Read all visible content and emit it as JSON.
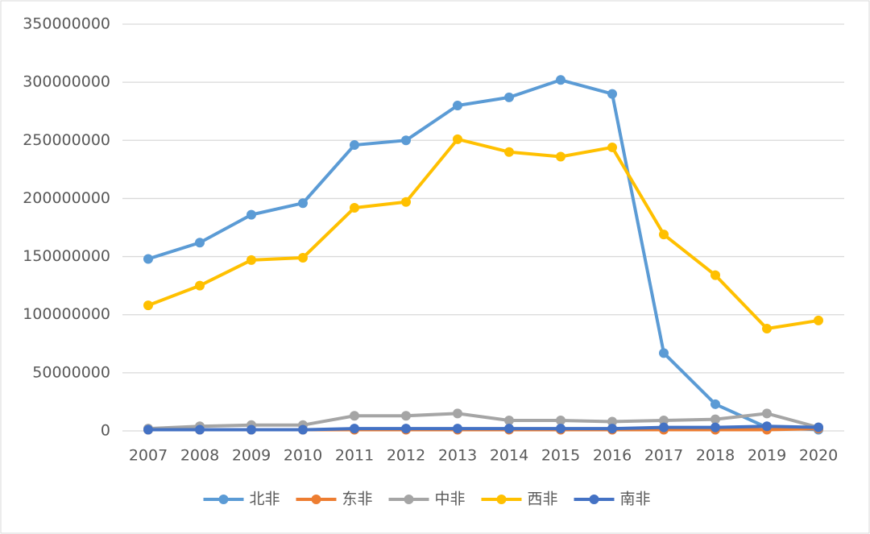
{
  "chart_data": {
    "type": "line",
    "categories": [
      "2007",
      "2008",
      "2009",
      "2010",
      "2011",
      "2012",
      "2013",
      "2014",
      "2015",
      "2016",
      "2017",
      "2018",
      "2019",
      "2020"
    ],
    "series": [
      {
        "name": "北非",
        "color": "#5b9bd5",
        "values": [
          148000000,
          162000000,
          186000000,
          196000000,
          246000000,
          250000000,
          280000000,
          287000000,
          302000000,
          290000000,
          67000000,
          23000000,
          3000000,
          1000000
        ]
      },
      {
        "name": "东非",
        "color": "#ed7d31",
        "values": [
          1000000,
          1000000,
          1000000,
          1000000,
          1000000,
          1000000,
          1000000,
          1000000,
          1000000,
          1000000,
          1000000,
          1000000,
          1000000,
          2000000
        ]
      },
      {
        "name": "中非",
        "color": "#a5a5a5",
        "values": [
          2000000,
          4000000,
          5000000,
          5000000,
          13000000,
          13000000,
          15000000,
          9000000,
          9000000,
          8000000,
          9000000,
          10000000,
          15000000,
          3000000
        ]
      },
      {
        "name": "西非",
        "color": "#ffc000",
        "values": [
          108000000,
          125000000,
          147000000,
          149000000,
          192000000,
          197000000,
          251000000,
          240000000,
          236000000,
          244000000,
          169000000,
          134000000,
          88000000,
          95000000
        ]
      },
      {
        "name": "南非",
        "color": "#4472c4",
        "values": [
          1000000,
          1000000,
          1000000,
          1000000,
          2000000,
          2000000,
          2000000,
          2000000,
          2000000,
          2000000,
          3000000,
          3000000,
          4000000,
          3000000
        ]
      }
    ],
    "ylim": [
      0,
      350000000
    ],
    "yticks": [
      0,
      50000000,
      100000000,
      150000000,
      200000000,
      250000000,
      300000000,
      350000000
    ],
    "grid": true,
    "legend": "bottom"
  }
}
